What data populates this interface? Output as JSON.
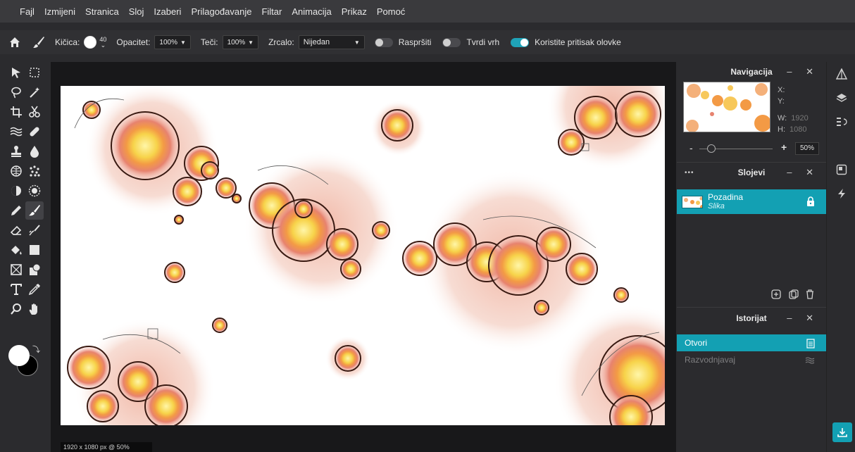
{
  "menu": [
    "Fajl",
    "Izmijeni",
    "Stranica",
    "Sloj",
    "Izaberi",
    "Prilagođavanje",
    "Filtar",
    "Animacija",
    "Prikaz",
    "Pomoć"
  ],
  "options": {
    "brush_label": "Kičica:",
    "brush_size": "40",
    "opacity_label": "Opacitet:",
    "opacity_value": "100%",
    "flow_label": "Teči:",
    "flow_value": "100%",
    "mirror_label": "Zrcalo:",
    "mirror_value": "Nijedan",
    "scatter_label": "Raspršiti",
    "scatter_on": false,
    "hardtip_label": "Tvrdi vrh",
    "hardtip_on": false,
    "pressure_label": "Koristite pritisak olovke",
    "pressure_on": true
  },
  "tools": [
    "move-tool",
    "marquee-tool",
    "lasso-tool",
    "magic-wand-tool",
    "crop-tool",
    "scissors-tool",
    "liquify-tool",
    "healing-tool",
    "stamp-tool",
    "blur-tool",
    "sponge-tool",
    "pixelate-tool",
    "dodge-tool",
    "spot-heal-tool",
    "pencil-tool",
    "brush-tool",
    "eraser-tool",
    "smudge-tool",
    "fill-tool",
    "gradient-tool",
    "frame-tool",
    "shape-tool",
    "text-tool",
    "color-picker-tool",
    "zoom-tool",
    "hand-tool"
  ],
  "active_tool": "brush-tool",
  "colors": {
    "foreground": "#ffffff",
    "background": "#000000",
    "accent": "#13a0b3"
  },
  "canvas_status": "1920 x 1080 px @ 50%",
  "navigation": {
    "title": "Navigacija",
    "x_label": "X:",
    "y_label": "Y:",
    "w_label": "W:",
    "w_value": "1920",
    "h_label": "H:",
    "h_value": "1080",
    "zoom_minus": "-",
    "zoom_plus": "+",
    "zoom_value": "50%"
  },
  "layers": {
    "menu_dots": "•••",
    "title": "Slojevi",
    "items": [
      {
        "name": "Pozadina",
        "type": "Slika",
        "locked": true
      }
    ]
  },
  "history": {
    "title": "Istorijat",
    "items": [
      {
        "label": "Otvori",
        "active": true
      },
      {
        "label": "Razvodnjavaj",
        "active": false
      }
    ]
  },
  "panel_controls": "– ✕"
}
